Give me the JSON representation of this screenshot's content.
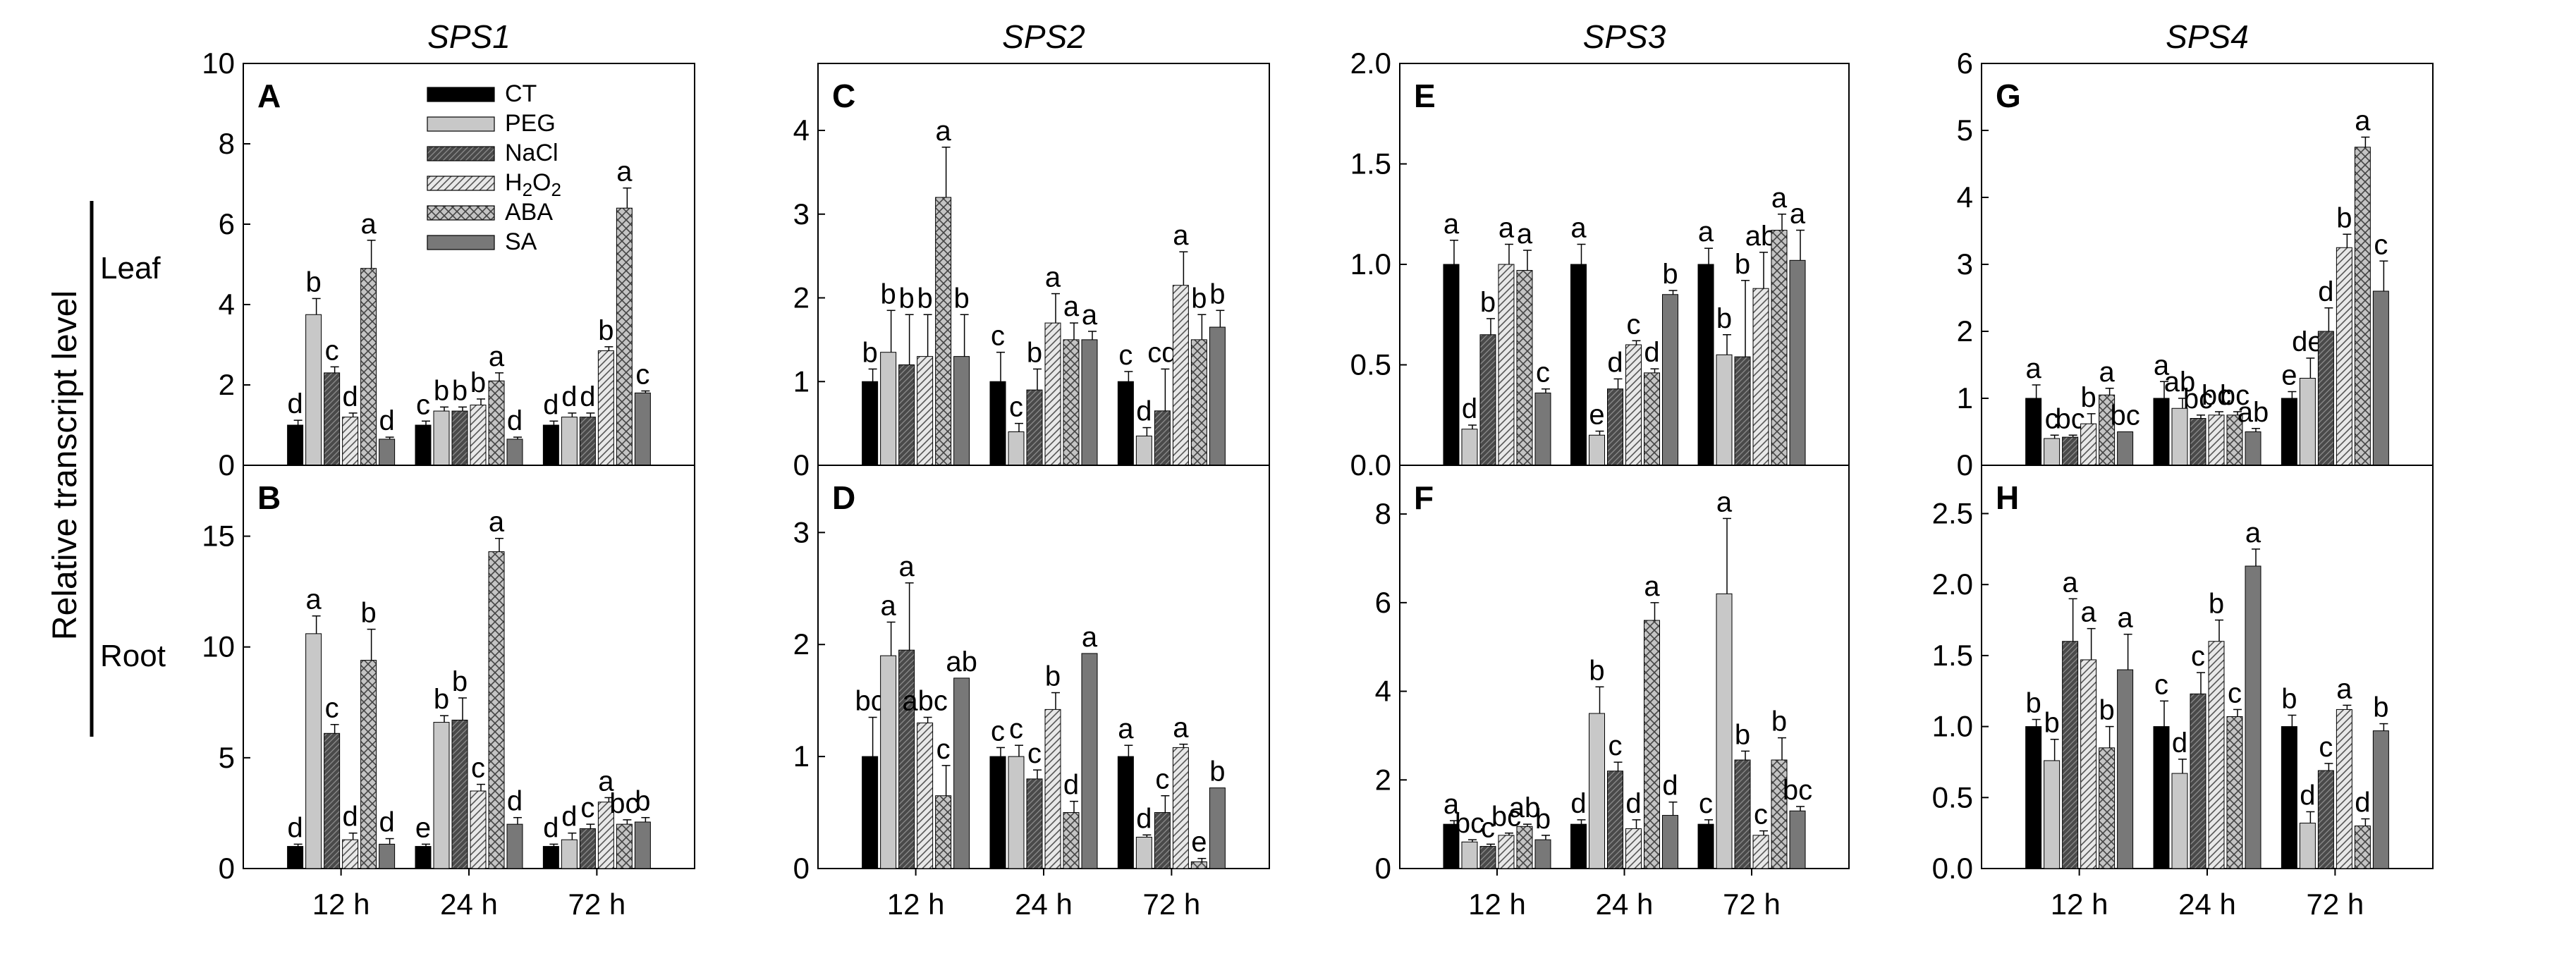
{
  "figure": {
    "y_axis_label": "Relative transcript level",
    "row_labels": [
      "Leaf",
      "Root"
    ],
    "legend": [
      "CT",
      "PEG",
      "NaCl",
      "H2O2",
      "ABA",
      "SA"
    ]
  },
  "colors": {
    "CT": "#000000",
    "PEG": "#c8c8c8",
    "NaCl": "#505050",
    "H2O2": "#e6e6e6",
    "ABA": "#a0a0a0",
    "SA": "#787878"
  },
  "chart_data": [
    {
      "id": "A",
      "title": "SPS1",
      "type": "bar",
      "categories": [
        "12 h",
        "24 h",
        "72 h"
      ],
      "ylim": [
        0,
        10
      ],
      "yticks": [
        0,
        2,
        4,
        6,
        8,
        10
      ],
      "ytick_labels": [
        "0",
        "2",
        "4",
        "6",
        "8",
        "10"
      ],
      "series": [
        {
          "name": "CT",
          "values": [
            1.0,
            1.0,
            1.0
          ],
          "errors": [
            0.12,
            0.1,
            0.1
          ],
          "letters": [
            "d",
            "c",
            "d"
          ]
        },
        {
          "name": "PEG",
          "values": [
            3.75,
            1.35,
            1.2
          ],
          "errors": [
            0.4,
            0.1,
            0.1
          ],
          "letters": [
            "b",
            "b",
            "d"
          ]
        },
        {
          "name": "NaCl",
          "values": [
            2.3,
            1.35,
            1.2
          ],
          "errors": [
            0.15,
            0.1,
            0.1
          ],
          "letters": [
            "c",
            "b",
            "d"
          ]
        },
        {
          "name": "H2O2",
          "values": [
            1.2,
            1.5,
            2.85
          ],
          "errors": [
            0.1,
            0.15,
            0.1
          ],
          "letters": [
            "d",
            "b",
            "b"
          ]
        },
        {
          "name": "ABA",
          "values": [
            4.9,
            2.1,
            6.4
          ],
          "errors": [
            0.7,
            0.2,
            0.5
          ],
          "letters": [
            "a",
            "a",
            "a"
          ]
        },
        {
          "name": "SA",
          "values": [
            0.65,
            0.65,
            1.8
          ],
          "errors": [
            0.05,
            0.05,
            0.05
          ],
          "letters": [
            "d",
            "d",
            "c"
          ]
        }
      ]
    },
    {
      "id": "B",
      "title": "",
      "type": "bar",
      "categories": [
        "12 h",
        "24 h",
        "72 h"
      ],
      "ylim": [
        0,
        18.2
      ],
      "yticks": [
        0,
        5,
        10,
        15
      ],
      "ytick_labels": [
        "0",
        "5",
        "10",
        "15"
      ],
      "series": [
        {
          "name": "CT",
          "values": [
            1.0,
            1.0,
            1.0
          ],
          "errors": [
            0.1,
            0.1,
            0.1
          ],
          "letters": [
            "d",
            "e",
            "d"
          ]
        },
        {
          "name": "PEG",
          "values": [
            10.6,
            6.6,
            1.3
          ],
          "errors": [
            0.8,
            0.3,
            0.3
          ],
          "letters": [
            "a",
            "b",
            "d"
          ]
        },
        {
          "name": "NaCl",
          "values": [
            6.1,
            6.7,
            1.8
          ],
          "errors": [
            0.4,
            1.0,
            0.2
          ],
          "letters": [
            "c",
            "b",
            "c"
          ]
        },
        {
          "name": "H2O2",
          "values": [
            1.3,
            3.5,
            3.0
          ],
          "errors": [
            0.3,
            0.3,
            0.2
          ],
          "letters": [
            "d",
            "c",
            "a"
          ]
        },
        {
          "name": "ABA",
          "values": [
            9.4,
            14.3,
            2.0
          ],
          "errors": [
            1.4,
            0.6,
            0.2
          ],
          "letters": [
            "b",
            "a",
            "bc"
          ]
        },
        {
          "name": "SA",
          "values": [
            1.1,
            2.0,
            2.1
          ],
          "errors": [
            0.25,
            0.3,
            0.2
          ],
          "letters": [
            "d",
            "d",
            "b"
          ]
        }
      ]
    },
    {
      "id": "C",
      "title": "SPS2",
      "type": "bar",
      "categories": [
        "12 h",
        "24 h",
        "72 h"
      ],
      "ylim": [
        0,
        4.8
      ],
      "yticks": [
        0,
        1,
        2,
        3,
        4
      ],
      "ytick_labels": [
        "0",
        "1",
        "2",
        "3",
        "4"
      ],
      "series": [
        {
          "name": "CT",
          "values": [
            1.0,
            1.0,
            1.0
          ],
          "errors": [
            0.15,
            0.35,
            0.12
          ],
          "letters": [
            "b",
            "c",
            "c"
          ]
        },
        {
          "name": "PEG",
          "values": [
            1.35,
            0.4,
            0.35
          ],
          "errors": [
            0.5,
            0.1,
            0.1
          ],
          "letters": [
            "b",
            "c",
            "d"
          ]
        },
        {
          "name": "NaCl",
          "values": [
            1.2,
            0.9,
            0.65
          ],
          "errors": [
            0.6,
            0.25,
            0.5
          ],
          "letters": [
            "b",
            "b",
            "cd"
          ]
        },
        {
          "name": "H2O2",
          "values": [
            1.3,
            1.7,
            2.15
          ],
          "errors": [
            0.5,
            0.35,
            0.4
          ],
          "letters": [
            "b",
            "a",
            "a"
          ]
        },
        {
          "name": "ABA",
          "values": [
            3.2,
            1.5,
            1.5
          ],
          "errors": [
            0.6,
            0.2,
            0.3
          ],
          "letters": [
            "a",
            "a",
            "b"
          ]
        },
        {
          "name": "SA",
          "values": [
            1.3,
            1.5,
            1.65
          ],
          "errors": [
            0.5,
            0.1,
            0.2
          ],
          "letters": [
            "b",
            "a",
            "b"
          ]
        }
      ]
    },
    {
      "id": "D",
      "title": "",
      "type": "bar",
      "categories": [
        "12 h",
        "24 h",
        "72 h"
      ],
      "ylim": [
        0,
        3.6
      ],
      "yticks": [
        0,
        1,
        2,
        3
      ],
      "ytick_labels": [
        "0",
        "1",
        "2",
        "3"
      ],
      "series": [
        {
          "name": "CT",
          "values": [
            1.0,
            1.0,
            1.0
          ],
          "errors": [
            0.35,
            0.08,
            0.1
          ],
          "letters": [
            "bc",
            "c",
            "a"
          ]
        },
        {
          "name": "PEG",
          "values": [
            1.9,
            1.0,
            0.28
          ],
          "errors": [
            0.3,
            0.1,
            0.02
          ],
          "letters": [
            "a",
            "c",
            "d"
          ]
        },
        {
          "name": "NaCl",
          "values": [
            1.95,
            0.8,
            0.5
          ],
          "errors": [
            0.6,
            0.08,
            0.15
          ],
          "letters": [
            "a",
            "c",
            "c"
          ]
        },
        {
          "name": "H2O2",
          "values": [
            1.3,
            1.42,
            1.08
          ],
          "errors": [
            0.05,
            0.15,
            0.03
          ],
          "letters": [
            "abc",
            "b",
            "a"
          ]
        },
        {
          "name": "ABA",
          "values": [
            0.65,
            0.5,
            0.06
          ],
          "errors": [
            0.27,
            0.1,
            0.03
          ],
          "letters": [
            "c",
            "d",
            "e"
          ]
        },
        {
          "name": "SA",
          "values": [
            1.7,
            1.92,
            0.72
          ],
          "errors": [
            0.0,
            0.0,
            0.0
          ],
          "letters": [
            "ab",
            "a",
            "b"
          ]
        }
      ]
    },
    {
      "id": "E",
      "title": "SPS3",
      "type": "bar",
      "categories": [
        "12 h",
        "24 h",
        "72 h"
      ],
      "ylim": [
        0,
        2.0
      ],
      "yticks": [
        0,
        0.5,
        1,
        1.5,
        2
      ],
      "ytick_labels": [
        "0.0",
        "0.5",
        "1.0",
        "1.5",
        "2.0"
      ],
      "series": [
        {
          "name": "CT",
          "values": [
            1.0,
            1.0,
            1.0
          ],
          "errors": [
            0.12,
            0.1,
            0.08
          ],
          "letters": [
            "a",
            "a",
            "a"
          ]
        },
        {
          "name": "PEG",
          "values": [
            0.18,
            0.15,
            0.55
          ],
          "errors": [
            0.02,
            0.02,
            0.1
          ],
          "letters": [
            "d",
            "e",
            "b"
          ]
        },
        {
          "name": "NaCl",
          "values": [
            0.65,
            0.38,
            0.54
          ],
          "errors": [
            0.08,
            0.05,
            0.38
          ],
          "letters": [
            "b",
            "d",
            "b"
          ]
        },
        {
          "name": "H2O2",
          "values": [
            1.0,
            0.6,
            0.88
          ],
          "errors": [
            0.1,
            0.02,
            0.18
          ],
          "letters": [
            "a",
            "c",
            "ab"
          ]
        },
        {
          "name": "ABA",
          "values": [
            0.97,
            0.46,
            1.17
          ],
          "errors": [
            0.1,
            0.02,
            0.08
          ],
          "letters": [
            "a",
            "d",
            "a"
          ]
        },
        {
          "name": "SA",
          "values": [
            0.36,
            0.85,
            1.02
          ],
          "errors": [
            0.02,
            0.02,
            0.15
          ],
          "letters": [
            "c",
            "b",
            "a"
          ]
        }
      ]
    },
    {
      "id": "F",
      "title": "",
      "type": "bar",
      "categories": [
        "12 h",
        "24 h",
        "72 h"
      ],
      "ylim": [
        0,
        9.1
      ],
      "yticks": [
        0,
        2,
        4,
        6,
        8
      ],
      "ytick_labels": [
        "0",
        "2",
        "4",
        "6",
        "8"
      ],
      "series": [
        {
          "name": "CT",
          "values": [
            1.0,
            1.0,
            1.0
          ],
          "errors": [
            0.08,
            0.1,
            0.1
          ],
          "letters": [
            "a",
            "d",
            "c"
          ]
        },
        {
          "name": "PEG",
          "values": [
            0.6,
            3.5,
            6.2
          ],
          "errors": [
            0.05,
            0.6,
            1.7
          ],
          "letters": [
            "bc",
            "b",
            "a"
          ]
        },
        {
          "name": "NaCl",
          "values": [
            0.5,
            2.2,
            2.45
          ],
          "errors": [
            0.05,
            0.2,
            0.2
          ],
          "letters": [
            "c",
            "c",
            "b"
          ]
        },
        {
          "name": "H2O2",
          "values": [
            0.75,
            0.9,
            0.75
          ],
          "errors": [
            0.05,
            0.2,
            0.1
          ],
          "letters": [
            "bc",
            "d",
            "c"
          ]
        },
        {
          "name": "ABA",
          "values": [
            0.95,
            5.6,
            2.45
          ],
          "errors": [
            0.05,
            0.4,
            0.5
          ],
          "letters": [
            "ab",
            "a",
            "b"
          ]
        },
        {
          "name": "SA",
          "values": [
            0.65,
            1.2,
            1.3
          ],
          "errors": [
            0.1,
            0.3,
            0.1
          ],
          "letters": [
            "b",
            "d",
            "bc"
          ]
        }
      ]
    },
    {
      "id": "G",
      "title": "SPS4",
      "type": "bar",
      "categories": [
        "12 h",
        "24 h",
        "72 h"
      ],
      "ylim": [
        0,
        6
      ],
      "yticks": [
        0,
        1,
        2,
        3,
        4,
        5,
        6
      ],
      "ytick_labels": [
        "0",
        "1",
        "2",
        "3",
        "4",
        "5",
        "6"
      ],
      "series": [
        {
          "name": "CT",
          "values": [
            1.0,
            1.0,
            1.0
          ],
          "errors": [
            0.2,
            0.25,
            0.1
          ],
          "letters": [
            "a",
            "a",
            "e"
          ]
        },
        {
          "name": "PEG",
          "values": [
            0.4,
            0.85,
            1.3
          ],
          "errors": [
            0.05,
            0.15,
            0.3
          ],
          "letters": [
            "c",
            "ab",
            "de"
          ]
        },
        {
          "name": "NaCl",
          "values": [
            0.42,
            0.7,
            2.0
          ],
          "errors": [
            0.03,
            0.05,
            0.35
          ],
          "letters": [
            "bc",
            "bc",
            "d"
          ]
        },
        {
          "name": "H2O2",
          "values": [
            0.62,
            0.75,
            3.25
          ],
          "errors": [
            0.15,
            0.05,
            0.2
          ],
          "letters": [
            "b",
            "bc",
            "b"
          ]
        },
        {
          "name": "ABA",
          "values": [
            1.05,
            0.75,
            4.75
          ],
          "errors": [
            0.1,
            0.05,
            0.15
          ],
          "letters": [
            "a",
            "bc",
            "a"
          ]
        },
        {
          "name": "SA",
          "values": [
            0.5,
            0.5,
            2.6
          ],
          "errors": [
            0.0,
            0.05,
            0.45
          ],
          "letters": [
            "bc",
            "ab",
            "c"
          ]
        }
      ]
    },
    {
      "id": "H",
      "title": "",
      "type": "bar",
      "categories": [
        "12 h",
        "24 h",
        "72 h"
      ],
      "ylim": [
        0,
        2.84
      ],
      "yticks": [
        0,
        0.5,
        1,
        1.5,
        2,
        2.5
      ],
      "ytick_labels": [
        "0.0",
        "0.5",
        "1.0",
        "1.5",
        "2.0",
        "2.5"
      ],
      "series": [
        {
          "name": "CT",
          "values": [
            1.0,
            1.0,
            1.0
          ],
          "errors": [
            0.05,
            0.18,
            0.08
          ],
          "letters": [
            "b",
            "c",
            "b"
          ]
        },
        {
          "name": "PEG",
          "values": [
            0.76,
            0.67,
            0.32
          ],
          "errors": [
            0.15,
            0.1,
            0.08
          ],
          "letters": [
            "b",
            "d",
            "d"
          ]
        },
        {
          "name": "NaCl",
          "values": [
            1.6,
            1.23,
            0.69
          ],
          "errors": [
            0.3,
            0.15,
            0.05
          ],
          "letters": [
            "a",
            "c",
            "c"
          ]
        },
        {
          "name": "H2O2",
          "values": [
            1.47,
            1.6,
            1.12
          ],
          "errors": [
            0.22,
            0.15,
            0.03
          ],
          "letters": [
            "a",
            "b",
            "a"
          ]
        },
        {
          "name": "ABA",
          "values": [
            0.85,
            1.07,
            0.3
          ],
          "errors": [
            0.15,
            0.05,
            0.05
          ],
          "letters": [
            "b",
            "c",
            "d"
          ]
        },
        {
          "name": "SA",
          "values": [
            1.4,
            2.13,
            0.97
          ],
          "errors": [
            0.25,
            0.12,
            0.05
          ],
          "letters": [
            "a",
            "a",
            "b"
          ]
        }
      ]
    }
  ]
}
